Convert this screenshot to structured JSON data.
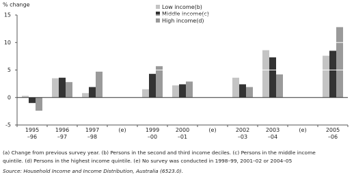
{
  "chart_data": {
    "type": "bar",
    "y_label": "% change",
    "categories": [
      "1995\n–96",
      "1996\n–97",
      "1997\n–98",
      "(e)",
      "1999\n–00",
      "2000\n–01",
      "(e)",
      "2002\n–03",
      "2003\n–04",
      "(e)",
      "2005\n–06"
    ],
    "series": [
      {
        "name": "Low income(b)",
        "color": "#c4c4c4",
        "values": [
          0.3,
          3.5,
          0.8,
          null,
          1.5,
          2.2,
          null,
          3.6,
          8.6,
          null,
          7.6
        ]
      },
      {
        "name": "Middle income(c)",
        "color": "#333333",
        "values": [
          -1.0,
          3.6,
          1.9,
          null,
          4.3,
          2.4,
          null,
          2.4,
          7.3,
          null,
          8.5
        ]
      },
      {
        "name": "High income(d)",
        "color": "#9a9a9a",
        "values": [
          -2.4,
          2.8,
          4.7,
          null,
          5.7,
          2.9,
          null,
          1.9,
          4.2,
          null,
          12.8
        ]
      }
    ],
    "ylim": [
      -5,
      15
    ],
    "yticks": [
      -5,
      0,
      5,
      10,
      15
    ],
    "grid": true,
    "footnotes": [
      "(a) Change from previous survey year. (b) Persons in the second and third income deciles. (c) Persons in the middle income",
      "quintile. (d) Persons in the highest income quintile. (e) No survey was conducted in 1998–99, 2001–02 or 2004–05"
    ],
    "source": "Source: Household Income and Income Distribution, Australia (6523.0)."
  }
}
